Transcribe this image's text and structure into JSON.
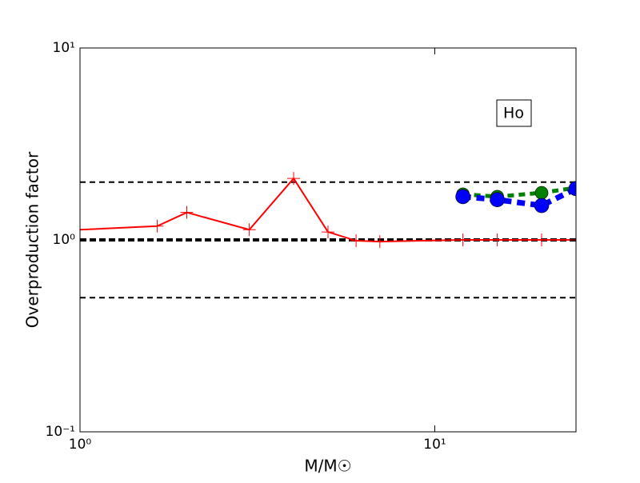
{
  "chart_data": {
    "type": "line",
    "xlabel": "M/M☉",
    "ylabel": "Overproduction factor",
    "annotation": "Ho",
    "xscale": "log",
    "yscale": "log",
    "xlim": [
      1,
      25
    ],
    "ylim": [
      0.1,
      10
    ],
    "xticks": [
      {
        "value": 1,
        "label": "10⁰"
      },
      {
        "value": 10,
        "label": "10¹"
      }
    ],
    "yticks": [
      {
        "value": 0.1,
        "label": "10⁻¹"
      },
      {
        "value": 1,
        "label": "10⁰"
      },
      {
        "value": 10,
        "label": "10¹"
      }
    ],
    "hlines": [
      2,
      1,
      0.5
    ],
    "series": [
      {
        "color": "#ff0000",
        "linestyle": "solid",
        "marker": "+",
        "x": [
          1,
          1.65,
          2,
          3,
          4,
          5,
          6,
          7,
          12,
          15,
          20,
          25
        ],
        "values": [
          1.13,
          1.18,
          1.39,
          1.13,
          2.09,
          1.1,
          0.99,
          0.98,
          1.0,
          1.0,
          1.0,
          1.0
        ]
      },
      {
        "color": "#008000",
        "linestyle": "dashed",
        "marker": "o",
        "x": [
          12,
          15,
          20,
          25
        ],
        "values": [
          1.73,
          1.68,
          1.76,
          1.87
        ]
      },
      {
        "color": "#0000ff",
        "linestyle": "dashed",
        "marker": "O",
        "x": [
          12,
          15,
          20,
          25
        ],
        "values": [
          1.68,
          1.62,
          1.51,
          1.85
        ]
      }
    ]
  }
}
